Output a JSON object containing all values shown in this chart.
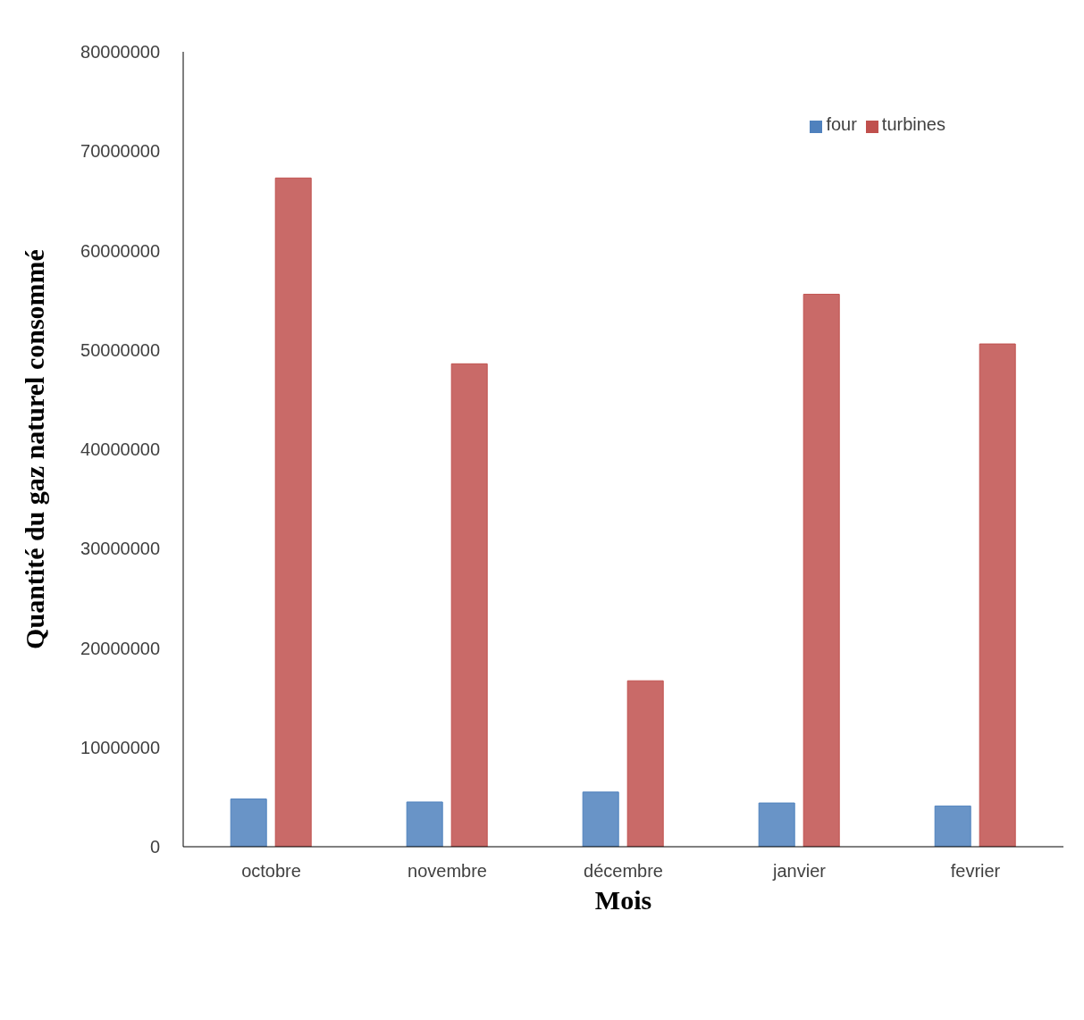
{
  "chart_data": {
    "type": "bar",
    "xlabel": "Mois",
    "ylabel": "Quantité du gaz naturel consommé",
    "categories": [
      "octobre",
      "novembre",
      "décembre",
      "janvier",
      "fevrier"
    ],
    "series": [
      {
        "name": "four",
        "color": "#4f81bd",
        "values": [
          4800000,
          4500000,
          5500000,
          4400000,
          4100000
        ]
      },
      {
        "name": "turbines",
        "color": "#c0504d",
        "values": [
          67300000,
          48600000,
          16700000,
          55600000,
          50600000
        ]
      }
    ],
    "ylim": [
      0,
      80000000
    ],
    "yticks": [
      0,
      10000000,
      20000000,
      30000000,
      40000000,
      50000000,
      60000000,
      70000000,
      80000000
    ],
    "grid": false,
    "legend": "top right"
  }
}
